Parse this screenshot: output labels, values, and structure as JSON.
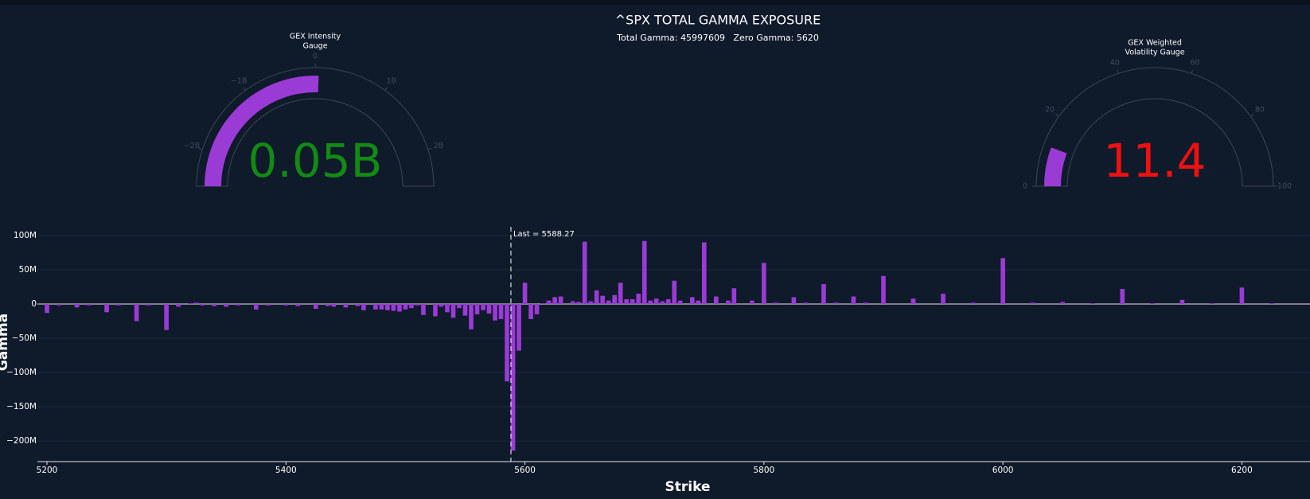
{
  "chart_data": {
    "type": "bar",
    "title": "^SPX TOTAL GAMMA EXPOSURE",
    "subtitle": "Total Gamma: 45997609   Zero Gamma: 5620",
    "xlabel": "Strike",
    "ylabel": "Gamma",
    "color": "#9b3bd6",
    "xlim": [
      5192,
      6257
    ],
    "ylim": [
      -230000000,
      115000000
    ],
    "xticks": [
      5200,
      5400,
      5600,
      5800,
      6000,
      6200
    ],
    "yticks": [
      {
        "value": 100000000,
        "label": "100M"
      },
      {
        "value": 50000000,
        "label": "50M"
      },
      0,
      {
        "value": -50000000,
        "label": "−50M"
      },
      {
        "value": -100000000,
        "label": "−100M"
      },
      {
        "value": -150000000,
        "label": "−150M"
      },
      {
        "value": -200000000,
        "label": "−200M"
      }
    ],
    "grid": true,
    "annotation": {
      "text": "Last = 5588.27",
      "x": 5588.27
    },
    "x": [
      5200,
      5210,
      5225,
      5235,
      5250,
      5260,
      5275,
      5285,
      5300,
      5310,
      5320,
      5325,
      5330,
      5340,
      5350,
      5360,
      5375,
      5385,
      5400,
      5410,
      5425,
      5435,
      5440,
      5450,
      5460,
      5465,
      5475,
      5480,
      5485,
      5490,
      5495,
      5500,
      5505,
      5510,
      5515,
      5525,
      5530,
      5535,
      5540,
      5545,
      5550,
      5555,
      5560,
      5565,
      5570,
      5575,
      5580,
      5585,
      5590,
      5595,
      5600,
      5605,
      5610,
      5615,
      5620,
      5625,
      5630,
      5640,
      5645,
      5650,
      5655,
      5660,
      5665,
      5670,
      5675,
      5680,
      5685,
      5690,
      5695,
      5700,
      5705,
      5710,
      5715,
      5720,
      5725,
      5730,
      5740,
      5745,
      5750,
      5760,
      5770,
      5775,
      5790,
      5800,
      5810,
      5825,
      5835,
      5850,
      5860,
      5875,
      5885,
      5900,
      5925,
      5950,
      5975,
      6000,
      6025,
      6050,
      6075,
      6100,
      6125,
      6150,
      6175,
      6200,
      6225
    ],
    "values": [
      -13000000,
      -2000000,
      -5000000,
      -2000000,
      -12000000,
      -2000000,
      -25000000,
      -2000000,
      -38000000,
      -4000000,
      1000000,
      2000000,
      -2000000,
      -3000000,
      -4000000,
      -2000000,
      -8000000,
      -2000000,
      -2000000,
      -3000000,
      -7000000,
      -3000000,
      -4000000,
      -5000000,
      -3000000,
      -9000000,
      -8000000,
      -8000000,
      -9000000,
      -10000000,
      -11000000,
      -8000000,
      -6000000,
      -2000000,
      -16000000,
      -18000000,
      -4000000,
      -12000000,
      -20000000,
      -6000000,
      -17000000,
      -37000000,
      -15000000,
      -9000000,
      -14000000,
      -24000000,
      -22000000,
      -113000000,
      -214000000,
      -68000000,
      31000000,
      -22000000,
      -15000000,
      1000000,
      5000000,
      10000000,
      11000000,
      4000000,
      3000000,
      91000000,
      4000000,
      20000000,
      12000000,
      5000000,
      13000000,
      31000000,
      7000000,
      7000000,
      15000000,
      92000000,
      5000000,
      8000000,
      4000000,
      7000000,
      34000000,
      5000000,
      10000000,
      5000000,
      90000000,
      11000000,
      5000000,
      23000000,
      5000000,
      60000000,
      2000000,
      10000000,
      2000000,
      29000000,
      2000000,
      11000000,
      2000000,
      41000000,
      8000000,
      15000000,
      2000000,
      67000000,
      2000000,
      3000000,
      1000000,
      22000000,
      1000000,
      6000000,
      1000000,
      24000000,
      1000000
    ]
  },
  "gauges": [
    {
      "title_lines": [
        "GEX Intensity",
        "Gauge"
      ],
      "range": [
        -2500000000,
        2500000000
      ],
      "ticks": [
        {
          "value": -2000000000,
          "label": "−2B"
        },
        {
          "value": -1000000000,
          "label": "−1B"
        },
        0,
        {
          "value": 1000000000,
          "label": "1B"
        },
        {
          "value": 2000000000,
          "label": "2B"
        }
      ],
      "value": 50000000,
      "value_label": "0.05B",
      "bar_color": "#9b3bd6",
      "value_color": "#138a13"
    },
    {
      "title_lines": [
        "GEX Weighted",
        "Volatility Gauge"
      ],
      "range": [
        0,
        100
      ],
      "ticks": [
        0,
        20,
        40,
        60,
        80,
        100
      ],
      "value": 11.4,
      "bar_color": "#9b3bd6",
      "value_color": "#ee1111"
    }
  ]
}
